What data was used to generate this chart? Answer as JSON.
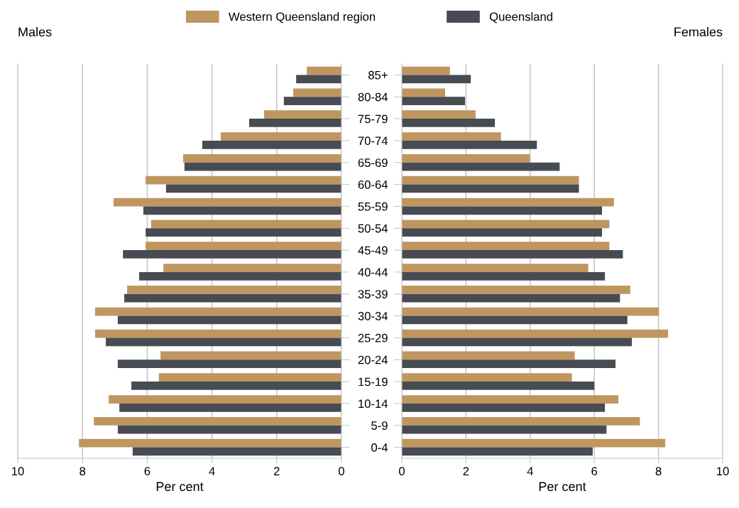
{
  "chart_data": [
    {
      "type": "bar",
      "orientation": "horizontal",
      "title": "Males",
      "xlabel": "Per cent",
      "series": [
        {
          "name": "Western Queensland region",
          "color": "#bf9660",
          "values": [
            1.07,
            1.49,
            2.39,
            3.73,
            4.89,
            6.05,
            7.04,
            5.88,
            6.05,
            5.5,
            6.62,
            7.61,
            7.61,
            5.59,
            5.64,
            7.19,
            7.65,
            8.11
          ]
        },
        {
          "name": "Queensland",
          "color": "#474b52",
          "values": [
            1.4,
            1.78,
            2.85,
            4.3,
            4.85,
            5.42,
            6.12,
            6.05,
            6.75,
            6.25,
            6.71,
            6.91,
            7.28,
            6.91,
            6.49,
            6.86,
            6.91,
            6.45
          ]
        }
      ],
      "xlim": [
        10,
        0
      ],
      "xticks": [
        10,
        8,
        6,
        4,
        2,
        0
      ],
      "grid": "x",
      "legend": "top",
      "tick_labels": "x"
    },
    {
      "type": "bar",
      "orientation": "horizontal",
      "title": "Females",
      "xlabel": "Per cent",
      "categories": [
        "85+",
        "80-84",
        "75-79",
        "70-74",
        "65-69",
        "60-64",
        "55-59",
        "50-54",
        "45-49",
        "40-44",
        "35-39",
        "30-34",
        "25-29",
        "20-24",
        "15-19",
        "10-14",
        "5-9",
        "0-4"
      ],
      "series": [
        {
          "color": "#bf9660",
          "values": [
            1.5,
            1.35,
            2.3,
            3.09,
            3.99,
            5.52,
            6.61,
            6.47,
            6.47,
            5.81,
            7.12,
            8.01,
            8.3,
            5.39,
            5.3,
            6.75,
            7.42,
            8.21
          ]
        },
        {
          "color": "#474b52",
          "values": [
            2.15,
            1.97,
            2.9,
            4.21,
            4.92,
            5.52,
            6.24,
            6.24,
            6.89,
            6.33,
            6.8,
            7.03,
            7.17,
            6.66,
            6.0,
            6.33,
            6.38,
            5.95
          ]
        }
      ],
      "xlim": [
        0,
        10
      ],
      "xticks": [
        0,
        2,
        4,
        6,
        8,
        10
      ],
      "grid": "x"
    }
  ]
}
